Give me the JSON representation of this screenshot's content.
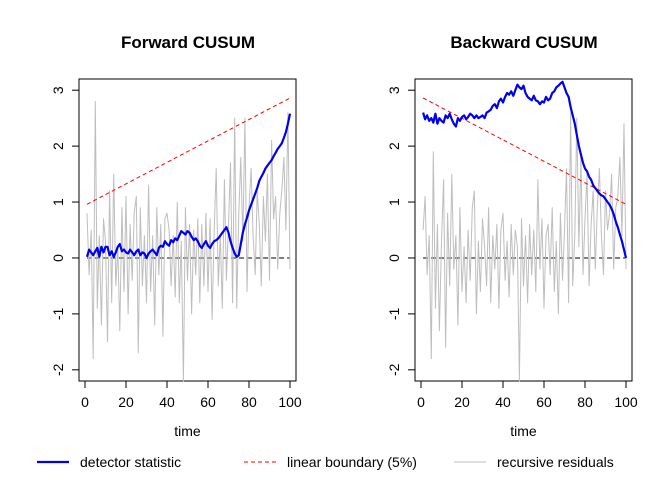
{
  "chart_data": [
    {
      "type": "line",
      "title": "Forward CUSUM",
      "xlabel": "time",
      "ylabel": "",
      "xlim": [
        0,
        100
      ],
      "ylim": [
        -2.2,
        3.2
      ],
      "xticks": [
        "0",
        "20",
        "40",
        "60",
        "80",
        "100"
      ],
      "yticks": [
        "-2",
        "-1",
        "0",
        "1",
        "2",
        "3"
      ],
      "series": [
        {
          "name": "detector statistic",
          "color": "#0000ee",
          "style": "solid",
          "x": [
            1,
            2,
            3,
            4,
            5,
            6,
            7,
            8,
            9,
            10,
            11,
            12,
            13,
            14,
            15,
            16,
            17,
            18,
            19,
            20,
            21,
            22,
            23,
            24,
            25,
            26,
            27,
            28,
            29,
            30,
            31,
            32,
            33,
            34,
            35,
            36,
            37,
            38,
            39,
            40,
            41,
            42,
            43,
            44,
            45,
            46,
            47,
            48,
            49,
            50,
            51,
            52,
            53,
            54,
            55,
            56,
            57,
            58,
            59,
            60,
            61,
            62,
            63,
            64,
            65,
            66,
            67,
            68,
            69,
            70,
            71,
            72,
            73,
            74,
            75,
            76,
            77,
            78,
            79,
            80,
            81,
            82,
            83,
            84,
            85,
            86,
            87,
            88,
            89,
            90,
            91,
            92,
            93,
            94,
            95,
            96,
            97,
            98,
            99,
            100
          ],
          "values": [
            0.02,
            0.15,
            0.1,
            0.05,
            0.12,
            0.18,
            0.02,
            0.2,
            0.1,
            0.2,
            0.2,
            0.05,
            0.12,
            0.02,
            0.1,
            0.2,
            0.25,
            0.12,
            0.15,
            0.1,
            0.08,
            0.15,
            0.1,
            0.05,
            0.12,
            0.15,
            0.05,
            0.1,
            0.08,
            0.0,
            0.08,
            0.12,
            0.15,
            0.1,
            0.05,
            0.18,
            0.22,
            0.2,
            0.3,
            0.25,
            0.22,
            0.32,
            0.28,
            0.35,
            0.32,
            0.4,
            0.48,
            0.45,
            0.42,
            0.48,
            0.45,
            0.38,
            0.32,
            0.35,
            0.3,
            0.22,
            0.18,
            0.25,
            0.3,
            0.22,
            0.18,
            0.25,
            0.3,
            0.32,
            0.35,
            0.4,
            0.45,
            0.5,
            0.55,
            0.45,
            0.3,
            0.18,
            0.08,
            0.02,
            0.05,
            0.25,
            0.45,
            0.6,
            0.72,
            0.85,
            0.95,
            1.05,
            1.15,
            1.25,
            1.38,
            1.45,
            1.52,
            1.6,
            1.65,
            1.7,
            1.75,
            1.82,
            1.88,
            1.95,
            2.0,
            2.05,
            2.15,
            2.25,
            2.4,
            2.58
          ]
        },
        {
          "name": "linear boundary (5%)",
          "color": "#ff0000",
          "style": "dashed",
          "x": [
            1,
            100
          ],
          "values": [
            0.96,
            2.86
          ]
        },
        {
          "name": "recursive residuals",
          "color": "#bebebe",
          "style": "solid",
          "x": [
            1,
            2,
            3,
            4,
            5,
            6,
            7,
            8,
            9,
            10,
            11,
            12,
            13,
            14,
            15,
            16,
            17,
            18,
            19,
            20,
            21,
            22,
            23,
            24,
            25,
            26,
            27,
            28,
            29,
            30,
            31,
            32,
            33,
            34,
            35,
            36,
            37,
            38,
            39,
            40,
            41,
            42,
            43,
            44,
            45,
            46,
            47,
            48,
            49,
            50,
            51,
            52,
            53,
            54,
            55,
            56,
            57,
            58,
            59,
            60,
            61,
            62,
            63,
            64,
            65,
            66,
            67,
            68,
            69,
            70,
            71,
            72,
            73,
            74,
            75,
            76,
            77,
            78,
            79,
            80,
            81,
            82,
            83,
            84,
            85,
            86,
            87,
            88,
            89,
            90,
            91,
            92,
            93,
            94,
            95,
            96,
            97,
            98,
            99,
            100
          ],
          "values": [
            0.8,
            -0.3,
            0.5,
            -1.8,
            2.8,
            -0.9,
            0.4,
            -1.2,
            0.7,
            0.3,
            -1.5,
            1.2,
            -0.8,
            1.5,
            -0.5,
            0.2,
            -1.3,
            0.9,
            -0.6,
            1.1,
            -1.0,
            0.6,
            -0.4,
            0.8,
            1.1,
            -1.7,
            0.9,
            -0.5,
            0.4,
            -0.8,
            1.3,
            -0.6,
            0.4,
            -1.2,
            0.9,
            -0.3,
            0.6,
            -1.4,
            0.7,
            0.8,
            0.5,
            -0.5,
            0.4,
            -0.7,
            1.0,
            -0.8,
            0.3,
            -2.2,
            0.9,
            -0.4,
            0.6,
            -1.0,
            0.5,
            -0.3,
            0.7,
            -0.8,
            0.6,
            -0.5,
            0.8,
            -0.6,
            0.7,
            -1.1,
            0.5,
            1.6,
            -0.5,
            0.4,
            -0.9,
            1.4,
            -0.4,
            0.6,
            1.7,
            -0.8,
            2.5,
            -0.9,
            0.8,
            1.8,
            0.3,
            2.5,
            -0.6,
            0.9,
            1.6,
            0.4,
            -0.3,
            1.2,
            0.6,
            -0.5,
            1.1,
            0.3,
            1.5,
            -0.4,
            2.1,
            0.7,
            1.1,
            -0.2,
            0.8,
            1.2,
            1.8,
            0.5,
            2.6,
            -0.2
          ]
        }
      ]
    },
    {
      "type": "line",
      "title": "Backward CUSUM",
      "xlabel": "time",
      "ylabel": "",
      "xlim": [
        0,
        100
      ],
      "ylim": [
        -2.2,
        3.2
      ],
      "xticks": [
        "0",
        "20",
        "40",
        "60",
        "80",
        "100"
      ],
      "yticks": [
        "-2",
        "-1",
        "0",
        "1",
        "2",
        "3"
      ],
      "series": [
        {
          "name": "detector statistic",
          "color": "#0000ee",
          "style": "solid",
          "x": [
            1,
            2,
            3,
            4,
            5,
            6,
            7,
            8,
            9,
            10,
            11,
            12,
            13,
            14,
            15,
            16,
            17,
            18,
            19,
            20,
            21,
            22,
            23,
            24,
            25,
            26,
            27,
            28,
            29,
            30,
            31,
            32,
            33,
            34,
            35,
            36,
            37,
            38,
            39,
            40,
            41,
            42,
            43,
            44,
            45,
            46,
            47,
            48,
            49,
            50,
            51,
            52,
            53,
            54,
            55,
            56,
            57,
            58,
            59,
            60,
            61,
            62,
            63,
            64,
            65,
            66,
            67,
            68,
            69,
            70,
            71,
            72,
            73,
            74,
            75,
            76,
            77,
            78,
            79,
            80,
            81,
            82,
            83,
            84,
            85,
            86,
            87,
            88,
            89,
            90,
            91,
            92,
            93,
            94,
            95,
            96,
            97,
            98,
            99,
            100
          ],
          "values": [
            2.6,
            2.48,
            2.55,
            2.45,
            2.5,
            2.42,
            2.58,
            2.4,
            2.5,
            2.45,
            2.42,
            2.55,
            2.5,
            2.58,
            2.48,
            2.4,
            2.35,
            2.5,
            2.45,
            2.52,
            2.55,
            2.48,
            2.52,
            2.58,
            2.55,
            2.5,
            2.55,
            2.5,
            2.52,
            2.55,
            2.5,
            2.6,
            2.62,
            2.65,
            2.72,
            2.75,
            2.68,
            2.8,
            2.85,
            2.78,
            2.88,
            2.95,
            2.92,
            2.98,
            2.9,
            3.0,
            3.1,
            3.05,
            3.02,
            3.08,
            2.95,
            2.88,
            2.85,
            2.82,
            2.9,
            2.82,
            2.8,
            2.75,
            2.8,
            2.78,
            2.88,
            2.82,
            2.85,
            2.95,
            2.98,
            3.05,
            3.08,
            3.12,
            3.15,
            3.05,
            2.95,
            2.88,
            2.7,
            2.55,
            2.4,
            2.2,
            2.0,
            1.85,
            1.7,
            1.6,
            1.55,
            1.45,
            1.4,
            1.3,
            1.25,
            1.2,
            1.15,
            1.12,
            1.1,
            1.05,
            1.0,
            0.95,
            0.88,
            0.78,
            0.65,
            0.55,
            0.42,
            0.3,
            0.15,
            0.0
          ]
        },
        {
          "name": "linear boundary (5%)",
          "color": "#ff0000",
          "style": "dashed",
          "x": [
            1,
            100
          ],
          "values": [
            2.86,
            0.96
          ]
        },
        {
          "name": "recursive residuals",
          "color": "#bebebe",
          "style": "solid",
          "x": [
            1,
            2,
            3,
            4,
            5,
            6,
            7,
            8,
            9,
            10,
            11,
            12,
            13,
            14,
            15,
            16,
            17,
            18,
            19,
            20,
            21,
            22,
            23,
            24,
            25,
            26,
            27,
            28,
            29,
            30,
            31,
            32,
            33,
            34,
            35,
            36,
            37,
            38,
            39,
            40,
            41,
            42,
            43,
            44,
            45,
            46,
            47,
            48,
            49,
            50,
            51,
            52,
            53,
            54,
            55,
            56,
            57,
            58,
            59,
            60,
            61,
            62,
            63,
            64,
            65,
            66,
            67,
            68,
            69,
            70,
            71,
            72,
            73,
            74,
            75,
            76,
            77,
            78,
            79,
            80,
            81,
            82,
            83,
            84,
            85,
            86,
            87,
            88,
            89,
            90,
            91,
            92,
            93,
            94,
            95,
            96,
            97,
            98,
            99,
            100
          ],
          "values": [
            0.5,
            1.1,
            -0.3,
            0.4,
            -1.8,
            1.9,
            -0.9,
            0.6,
            -1.3,
            0.3,
            1.4,
            -1.6,
            0.8,
            -0.5,
            1.5,
            -0.2,
            0.4,
            -1.2,
            0.9,
            -0.6,
            0.2,
            -0.8,
            0.5,
            -0.4,
            0.9,
            1.2,
            -1.0,
            0.3,
            -0.6,
            0.7,
            0.2,
            -0.5,
            0.9,
            -0.8,
            0.4,
            -0.2,
            0.6,
            -0.9,
            0.5,
            0.8,
            -0.4,
            0.3,
            -0.7,
            0.6,
            -0.3,
            0.5,
            0.2,
            -2.2,
            0.7,
            -0.5,
            0.4,
            -0.8,
            0.6,
            -0.3,
            0.5,
            -0.6,
            1.4,
            -0.2,
            0.7,
            -0.9,
            0.4,
            0.6,
            -0.3,
            0.9,
            -0.6,
            0.3,
            -1.0,
            0.8,
            -0.4,
            0.5,
            1.6,
            -0.8,
            2.6,
            -0.5,
            0.4,
            2.5,
            0.2,
            1.8,
            -0.3,
            0.7,
            1.5,
            -0.5,
            0.6,
            1.2,
            -0.2,
            0.9,
            1.6,
            0.4,
            -0.3,
            1.2,
            0.5,
            0.8,
            1.5,
            -0.2,
            0.9,
            1.1,
            1.8,
            0.4,
            2.4,
            -0.2
          ]
        }
      ]
    }
  ],
  "legend": {
    "items": [
      {
        "label": "detector statistic",
        "color": "#0000ee",
        "style": "solid"
      },
      {
        "label": "linear boundary (5%)",
        "color": "#ff0000",
        "style": "dashed"
      },
      {
        "label": "recursive residuals",
        "color": "#bebebe",
        "style": "solid"
      }
    ]
  }
}
